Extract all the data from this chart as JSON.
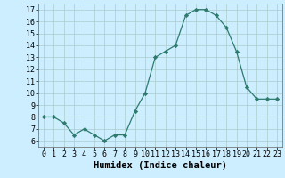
{
  "x": [
    0,
    1,
    2,
    3,
    4,
    5,
    6,
    7,
    8,
    9,
    10,
    11,
    12,
    13,
    14,
    15,
    16,
    17,
    18,
    19,
    20,
    21,
    22,
    23
  ],
  "y": [
    8.0,
    8.0,
    7.5,
    6.5,
    7.0,
    6.5,
    6.0,
    6.5,
    6.5,
    8.5,
    10.0,
    13.0,
    13.5,
    14.0,
    16.5,
    17.0,
    17.0,
    16.5,
    15.5,
    13.5,
    10.5,
    9.5,
    9.5,
    9.5
  ],
  "line_color": "#2e7b6e",
  "marker_color": "#2e7b6e",
  "bg_color": "#cceeff",
  "grid_color": "#aacccc",
  "xlabel": "Humidex (Indice chaleur)",
  "ylim": [
    5.5,
    17.5
  ],
  "xlim": [
    -0.5,
    23.5
  ],
  "yticks": [
    6,
    7,
    8,
    9,
    10,
    11,
    12,
    13,
    14,
    15,
    16,
    17
  ],
  "xticks": [
    0,
    1,
    2,
    3,
    4,
    5,
    6,
    7,
    8,
    9,
    10,
    11,
    12,
    13,
    14,
    15,
    16,
    17,
    18,
    19,
    20,
    21,
    22,
    23
  ],
  "xlabel_fontsize": 7.5,
  "tick_fontsize": 6.0
}
